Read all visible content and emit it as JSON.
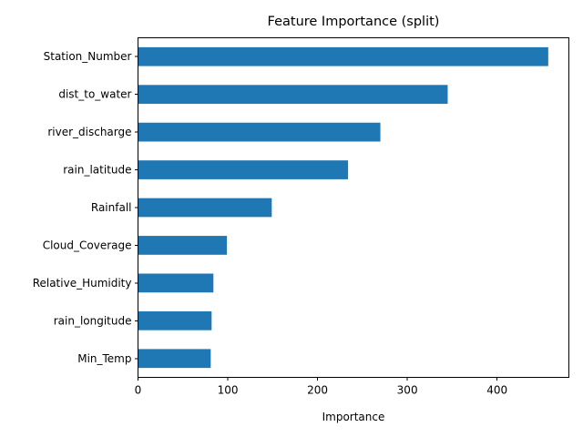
{
  "chart_data": {
    "type": "bar",
    "orientation": "horizontal",
    "title": "Feature Importance (split)",
    "xlabel": "Importance",
    "ylabel": "",
    "categories": [
      "Station_Number",
      "dist_to_water",
      "river_discharge",
      "rain_latitude",
      "Rainfall",
      "Cloud_Coverage",
      "Relative_Humidity",
      "rain_longitude",
      "Min_Temp"
    ],
    "values": [
      457,
      345,
      270,
      234,
      149,
      99,
      84,
      82,
      81
    ],
    "xlim": [
      0,
      480
    ],
    "xticks": [
      0,
      100,
      200,
      300,
      400
    ],
    "grid": false,
    "bar_color": "#1f77b4"
  }
}
